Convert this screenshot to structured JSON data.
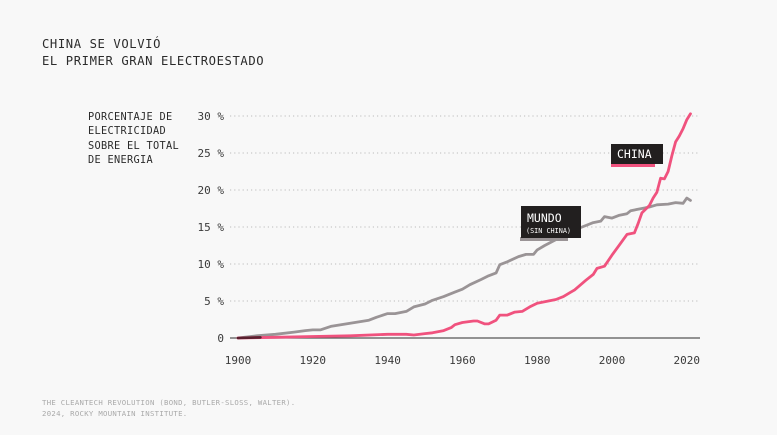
{
  "header": {
    "title_lines": [
      "CHINA SE VOLVIÓ",
      "EL PRIMER GRAN ELECTROESTADO"
    ]
  },
  "source": {
    "lines": [
      "THE CLEANTECH REVOLUTION (BOND, BUTLER-SLOSS, WALTER).",
      "2024, ROCKY MOUNTAIN INSTITUTE."
    ]
  },
  "chart_data": {
    "type": "line",
    "title": "CHINA SE VOLVIÓ EL PRIMER GRAN ELECTROESTADO",
    "ylabel": "PORCENTAJE DE ELECTRICIDAD SOBRE EL TOTAL DE ENERGIA",
    "ylabel_lines": [
      "PORCENTAJE DE",
      "ELECTRICIDAD",
      "SOBRE EL TOTAL",
      "DE ENERGIA"
    ],
    "xlabel": "",
    "xlim": [
      1900,
      2021
    ],
    "ylim": [
      0,
      30
    ],
    "x_ticks": [
      1900,
      1920,
      1940,
      1960,
      1980,
      2000,
      2020
    ],
    "x_tick_labels": [
      "1900",
      "1920",
      "1940",
      "1960",
      "1980",
      "2000",
      "2020"
    ],
    "y_ticks": [
      0,
      5,
      10,
      15,
      20,
      25,
      30
    ],
    "y_tick_labels": [
      "0",
      "5 %",
      "10 %",
      "15 %",
      "20 %",
      "25 %",
      "30 %"
    ],
    "grid": "horizontal-dotted",
    "series": [
      {
        "name": "MUNDO",
        "sublabel": "(SIN CHINA)",
        "color": "#9a9496",
        "x": [
          1900,
          1905,
          1910,
          1915,
          1918,
          1920,
          1922,
          1925,
          1930,
          1935,
          1937,
          1940,
          1942,
          1945,
          1947,
          1950,
          1952,
          1955,
          1958,
          1960,
          1962,
          1965,
          1967,
          1969,
          1970,
          1972,
          1975,
          1977,
          1979,
          1980,
          1982,
          1985,
          1987,
          1990,
          1992,
          1995,
          1997,
          1998,
          2000,
          2002,
          2004,
          2005,
          2008,
          2010,
          2012,
          2015,
          2017,
          2019,
          2020,
          2021
        ],
        "values": [
          0.0,
          0.3,
          0.5,
          0.8,
          1.0,
          1.1,
          1.1,
          1.6,
          2.0,
          2.4,
          2.8,
          3.3,
          3.3,
          3.6,
          4.2,
          4.6,
          5.1,
          5.6,
          6.2,
          6.6,
          7.2,
          7.9,
          8.4,
          8.8,
          9.9,
          10.3,
          11.0,
          11.3,
          11.3,
          11.9,
          12.5,
          13.3,
          14.0,
          14.6,
          15.0,
          15.6,
          15.8,
          16.4,
          16.2,
          16.6,
          16.8,
          17.2,
          17.5,
          17.7,
          18.0,
          18.1,
          18.3,
          18.2,
          18.9,
          18.6
        ]
      },
      {
        "name": "CHINA",
        "color": "#f0527e",
        "x": [
          1900,
          1910,
          1920,
          1930,
          1940,
          1945,
          1947,
          1950,
          1952,
          1955,
          1957,
          1958,
          1960,
          1963,
          1964,
          1966,
          1967,
          1969,
          1970,
          1972,
          1974,
          1976,
          1978,
          1980,
          1983,
          1985,
          1987,
          1989,
          1990,
          1993,
          1995,
          1996,
          1998,
          2000,
          2002,
          2004,
          2006,
          2007,
          2008,
          2010,
          2011,
          2012,
          2013,
          2014,
          2015,
          2016,
          2017,
          2018,
          2019,
          2020,
          2021
        ],
        "values": [
          0.0,
          0.1,
          0.2,
          0.3,
          0.5,
          0.5,
          0.4,
          0.6,
          0.7,
          1.0,
          1.4,
          1.8,
          2.1,
          2.3,
          2.3,
          1.9,
          1.9,
          2.4,
          3.1,
          3.1,
          3.5,
          3.6,
          4.2,
          4.7,
          5.0,
          5.2,
          5.6,
          6.2,
          6.5,
          7.8,
          8.6,
          9.4,
          9.7,
          11.2,
          12.6,
          14.0,
          14.2,
          15.5,
          16.9,
          17.9,
          18.9,
          19.7,
          21.6,
          21.5,
          22.5,
          24.6,
          26.5,
          27.3,
          28.3,
          29.5,
          30.3
        ]
      }
    ],
    "annotations": [
      {
        "text": "MUNDO",
        "sub": "(SIN CHINA)",
        "series": "MUNDO"
      },
      {
        "text": "CHINA",
        "series": "CHINA"
      }
    ]
  }
}
